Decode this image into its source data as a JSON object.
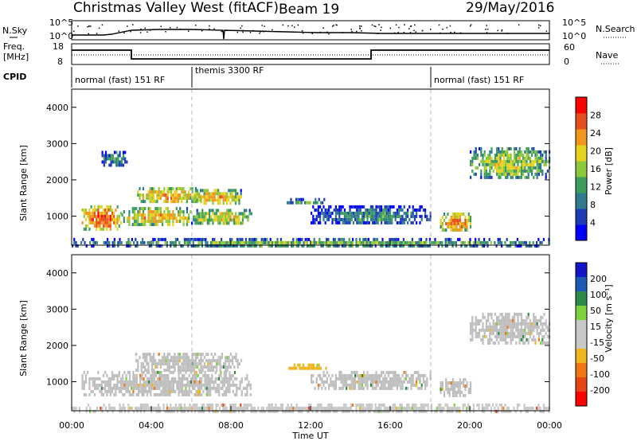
{
  "header": {
    "station": "Christmas Valley West (fitACF)",
    "beam": "Beam 19",
    "date": "29/May/2016"
  },
  "sky_panel": {
    "left_label": "N.Sky",
    "right_label": "N.Search",
    "left_ticks": [
      "10^5",
      "10^0"
    ],
    "right_ticks": [
      "10^5",
      "10^0"
    ]
  },
  "freq_panel": {
    "left_label_1": "Freq.",
    "left_label_2": "[MHz]",
    "right_label": "Nave",
    "left_ticks": [
      "18",
      "8"
    ],
    "right_ticks": [
      "60",
      "0"
    ]
  },
  "cpid": {
    "label": "CPID",
    "segments": [
      "normal (fast) 151 RF",
      "themis 3300 RF",
      "normal (fast) 151 RF"
    ]
  },
  "colors": {
    "power_scale": [
      "#0000ff",
      "#1e3cb4",
      "#2f7a8c",
      "#3c9c5a",
      "#8cc83c",
      "#e6d21e",
      "#f0961e",
      "#e6501e",
      "#ff0000"
    ],
    "velocity_scale": [
      "#1414c8",
      "#1e5ab4",
      "#2f8a4a",
      "#7ed23c",
      "#c8c8c8",
      "#c8c8c8",
      "#f0b41e",
      "#f07814",
      "#e64614",
      "#ff0000"
    ],
    "ground_scatter": "#bebebe"
  },
  "chart_data": [
    {
      "type": "heatmap",
      "name": "power",
      "ylabel": "Slant Range [km]",
      "yticks": [
        "1000",
        "2000",
        "3000",
        "4000"
      ],
      "ylim": [
        200,
        4500
      ],
      "xlim_hours": [
        0,
        24
      ],
      "colorbar": {
        "label": "Power [dB]",
        "ticks": [
          "4",
          "8",
          "12",
          "16",
          "20",
          "24",
          "28"
        ],
        "range": [
          0,
          32
        ]
      },
      "features": [
        {
          "t0": 0.5,
          "t1": 2.5,
          "r0": 650,
          "r1": 1300,
          "level": 26
        },
        {
          "t0": 2.5,
          "t1": 6.0,
          "r0": 800,
          "r1": 1250,
          "level": 22
        },
        {
          "t0": 6.0,
          "t1": 9.0,
          "r0": 800,
          "r1": 1200,
          "level": 20
        },
        {
          "t0": 3.2,
          "t1": 6.5,
          "r0": 1400,
          "r1": 1800,
          "level": 23
        },
        {
          "t0": 6.0,
          "t1": 8.5,
          "r0": 1350,
          "r1": 1750,
          "level": 22
        },
        {
          "t0": 10.8,
          "t1": 12.8,
          "r0": 1350,
          "r1": 1500,
          "level": 14
        },
        {
          "t0": 12.0,
          "t1": 18.0,
          "r0": 800,
          "r1": 1300,
          "level": 11
        },
        {
          "t0": 18.5,
          "t1": 20.0,
          "r0": 650,
          "r1": 1100,
          "level": 24
        },
        {
          "t0": 20.0,
          "t1": 24.0,
          "r0": 2100,
          "r1": 2900,
          "level": 18
        },
        {
          "t0": 1.5,
          "t1": 2.8,
          "r0": 2400,
          "r1": 2800,
          "level": 12
        },
        {
          "t0": 0.0,
          "t1": 24.0,
          "r0": 200,
          "r1": 400,
          "level": 15
        }
      ]
    },
    {
      "type": "heatmap",
      "name": "velocity",
      "ylabel": "Slant Range [km]",
      "yticks": [
        "1000",
        "2000",
        "3000",
        "4000"
      ],
      "ylim": [
        200,
        4500
      ],
      "xlabel": "Time UT",
      "xticks": [
        "00:00",
        "04:00",
        "08:00",
        "12:00",
        "16:00",
        "20:00",
        "00:00"
      ],
      "xlim_hours": [
        0,
        24
      ],
      "colorbar": {
        "label": "Velocity [m s⁻¹]",
        "ticks": [
          "200",
          "100",
          "50",
          "15",
          "-15",
          "-50",
          "-100",
          "-200"
        ],
        "range": [
          -250,
          250
        ]
      },
      "features": [
        {
          "t0": 0.5,
          "t1": 9.0,
          "r0": 650,
          "r1": 1300,
          "level": 0
        },
        {
          "t0": 3.2,
          "t1": 8.5,
          "r0": 1350,
          "r1": 1800,
          "level": 0
        },
        {
          "t0": 10.8,
          "t1": 12.8,
          "r0": 1350,
          "r1": 1500,
          "level": -60
        },
        {
          "t0": 12.0,
          "t1": 18.0,
          "r0": 800,
          "r1": 1300,
          "level": 0
        },
        {
          "t0": 18.5,
          "t1": 20.0,
          "r0": 650,
          "r1": 1100,
          "level": 0
        },
        {
          "t0": 20.0,
          "t1": 24.0,
          "r0": 2100,
          "r1": 2900,
          "level": 0
        },
        {
          "t0": 0.0,
          "t1": 24.0,
          "r0": 200,
          "r1": 400,
          "level": -40
        }
      ]
    }
  ]
}
